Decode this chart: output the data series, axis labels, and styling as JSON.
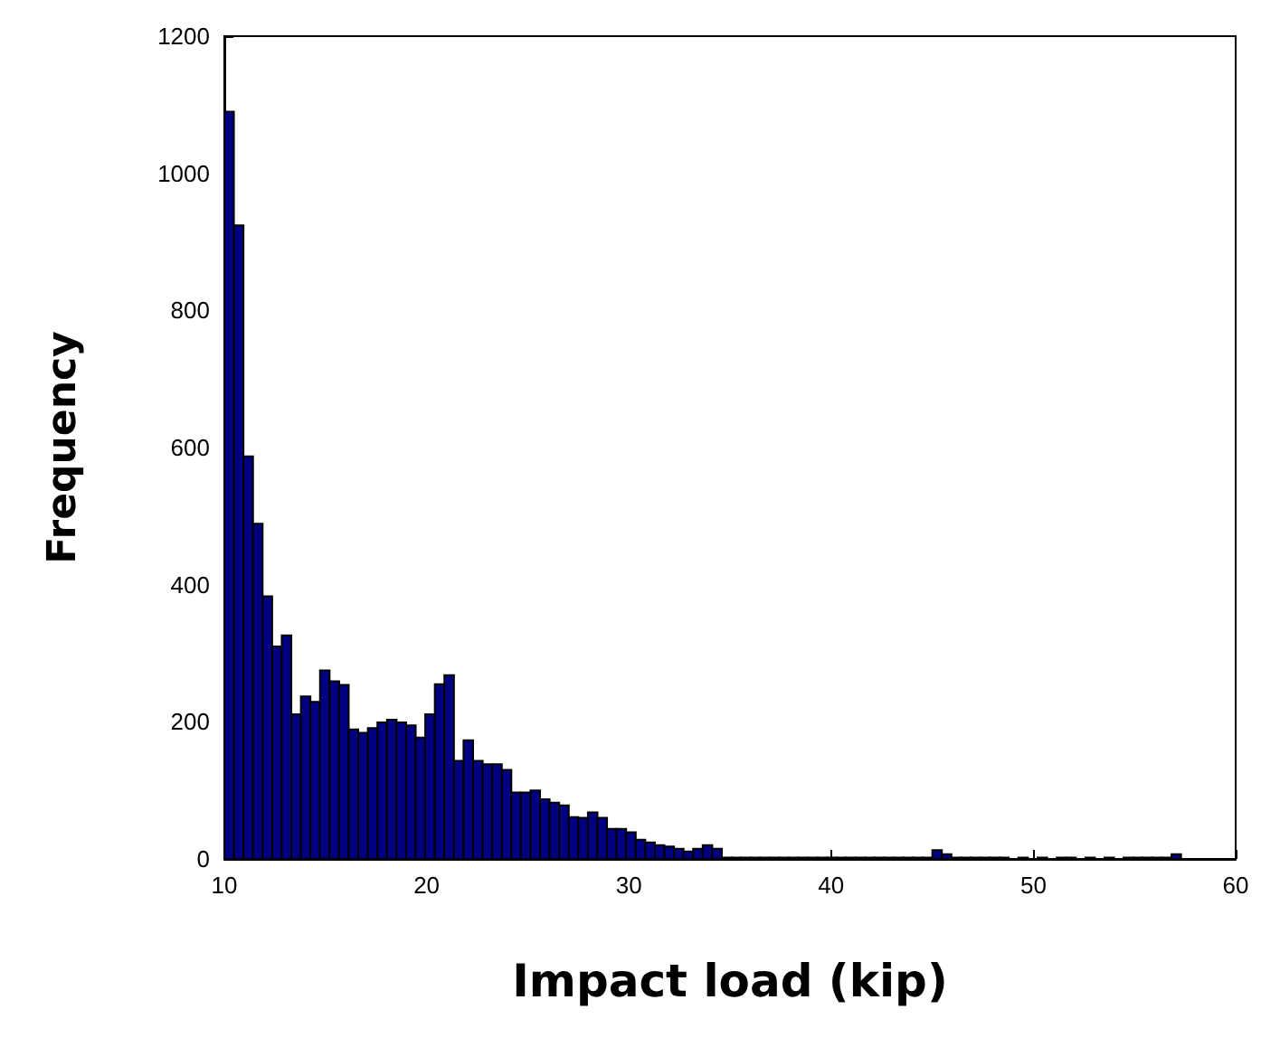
{
  "chart_data": {
    "type": "histogram",
    "xlabel": "Impact load (kip)",
    "ylabel": "Frequency",
    "color": "#000080",
    "bins": [
      10,
      10.473,
      10.946,
      11.419,
      11.892,
      12.365,
      12.838,
      13.311,
      13.784,
      14.257,
      14.73,
      15.203,
      15.676,
      16.149,
      16.622,
      17.095,
      17.568,
      18.041,
      18.514,
      18.987,
      19.46,
      19.933,
      20.406,
      20.879,
      21.352,
      21.825,
      22.298,
      22.771,
      23.244,
      23.717,
      24.19,
      24.663,
      25.136,
      25.609,
      26.082,
      26.555,
      27.028,
      27.501,
      27.974,
      28.447,
      28.92,
      29.393,
      29.866,
      30.339,
      30.812,
      31.285,
      31.758,
      32.231,
      32.704,
      33.177,
      33.65,
      34.123,
      34.596,
      35.069,
      35.542,
      36.015,
      36.488,
      36.961,
      37.434,
      37.907,
      38.38,
      38.853,
      39.326,
      39.799,
      40.272,
      40.745,
      41.218,
      41.691,
      42.164,
      42.637,
      43.11,
      43.583,
      44.056,
      44.529,
      45.002,
      45.475,
      45.948,
      46.421,
      46.894,
      47.367,
      47.84,
      48.313,
      48.786,
      49.259,
      49.732,
      50.205,
      50.678,
      51.151,
      51.624,
      52.097,
      52.57,
      53.043,
      53.516,
      53.989,
      54.462,
      54.935,
      55.408,
      55.881,
      56.354,
      56.827,
      57.3
    ],
    "values": [
      1090,
      924,
      587,
      489,
      383,
      310,
      326,
      211,
      237,
      229,
      275,
      259,
      254,
      189,
      184,
      191,
      199,
      203,
      199,
      195,
      177,
      211,
      255,
      268,
      143,
      173,
      143,
      138,
      138,
      130,
      97,
      97,
      100,
      87,
      82,
      78,
      61,
      60,
      68,
      60,
      44,
      44,
      39,
      28,
      24,
      20,
      18,
      15,
      11,
      15,
      20,
      15,
      2,
      2,
      2,
      2,
      2,
      2,
      2,
      2,
      2,
      2,
      2,
      2,
      2,
      2,
      2,
      2,
      2,
      2,
      2,
      2,
      2,
      2,
      13,
      7,
      2,
      2,
      2,
      2,
      2,
      2,
      0,
      2,
      0,
      2,
      0,
      2,
      2,
      0,
      2,
      0,
      2,
      0,
      2,
      2,
      2,
      2,
      2,
      7
    ],
    "xlim": [
      10,
      60
    ],
    "xticks": [
      10,
      20,
      30,
      40,
      50,
      60
    ],
    "ylim": [
      0,
      1200
    ],
    "yticks": [
      0,
      200,
      400,
      600,
      800,
      1000,
      1200
    ],
    "grid": false
  }
}
